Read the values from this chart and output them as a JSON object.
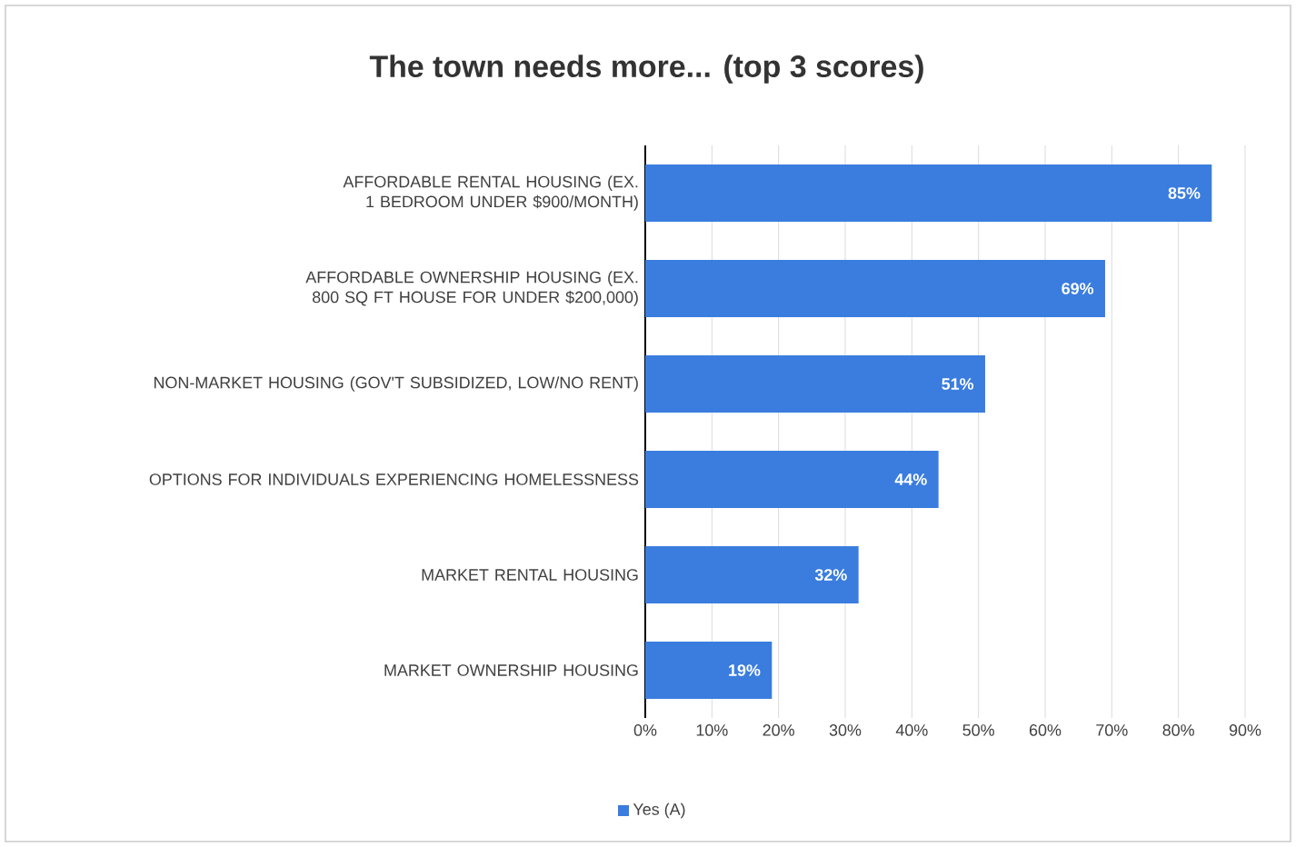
{
  "chart_data": {
    "type": "bar",
    "orientation": "horizontal",
    "title": "The town needs more... (top 3 scores)",
    "categories": [
      "AFFORDABLE RENTAL HOUSING (EX. 1 BEDROOM UNDER $900/MONTH)",
      "AFFORDABLE OWNERSHIP HOUSING (EX. 800 SQ FT HOUSE FOR UNDER $200,000)",
      "NON-MARKET HOUSING (GOV'T SUBSIDIZED, LOW/NO RENT)",
      "OPTIONS FOR INDIVIDUALS EXPERIENCING HOMELESSNESS",
      "MARKET RENTAL HOUSING",
      "MARKET OWNERSHIP HOUSING"
    ],
    "series": [
      {
        "name": "Yes (A)",
        "color": "#3a7dde",
        "values": [
          85,
          69,
          51,
          44,
          32,
          19
        ],
        "value_labels": [
          "85%",
          "69%",
          "51%",
          "44%",
          "32%",
          "19%"
        ]
      }
    ],
    "xlim": [
      0,
      90
    ],
    "xticks": [
      {
        "value": 0,
        "label": "0%"
      },
      {
        "value": 10,
        "label": "10%"
      },
      {
        "value": 20,
        "label": "20%"
      },
      {
        "value": 30,
        "label": "30%"
      },
      {
        "value": 40,
        "label": "40%"
      },
      {
        "value": 50,
        "label": "50%"
      },
      {
        "value": 60,
        "label": "60%"
      },
      {
        "value": 70,
        "label": "70%"
      },
      {
        "value": 80,
        "label": "80%"
      },
      {
        "value": 90,
        "label": "90%"
      }
    ],
    "grid": "x",
    "legend": "bottom left"
  }
}
